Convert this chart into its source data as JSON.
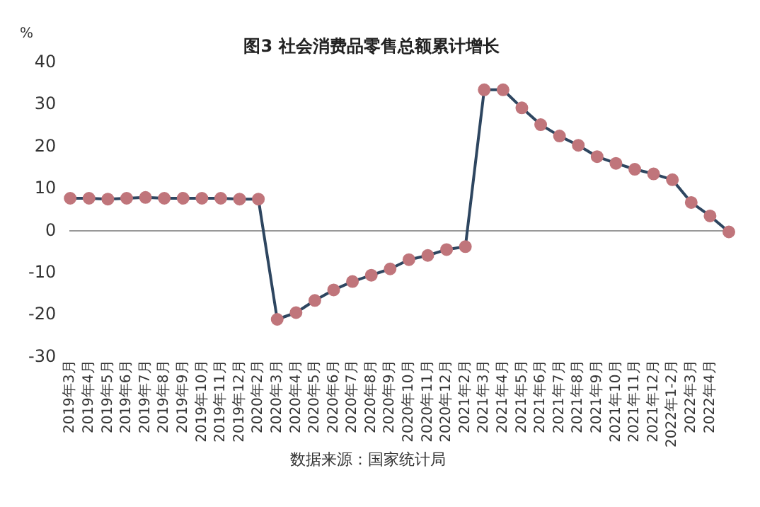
{
  "chart_data": {
    "type": "line",
    "title": "图3 社会消费品零售总额累计增长",
    "ylabel": "%",
    "categories": [
      "2019年3月",
      "2019年4月",
      "2019年5月",
      "2019年6月",
      "2019年7月",
      "2019年8月",
      "2019年9月",
      "2019年10月",
      "2019年11月",
      "2019年12月",
      "2020年2月",
      "2020年3月",
      "2020年4月",
      "2020年5月",
      "2020年6月",
      "2020年7月",
      "2020年8月",
      "2020年9月",
      "2020年10月",
      "2020年11月",
      "2020年12月",
      "2021年2月",
      "2021年3月",
      "2021年4月",
      "2021年5月",
      "2021年6月",
      "2021年7月",
      "2021年8月",
      "2021年9月",
      "2021年10月",
      "2021年11月",
      "2021年12月",
      "2022年1-2月",
      "2022年3月",
      "2022年4月",
      null
    ],
    "series": [
      {
        "color": "#2e4660",
        "colors": [
          "#c0757b",
          "#c0757b",
          "#c0757b",
          "#c0757b",
          "#c0757b",
          "#c0757b",
          "#c0757b",
          "#c0757b",
          "#c0757b",
          "#c0757b",
          "#c0757b",
          "#c0757b",
          "#c0757b",
          "#c0757b",
          "#c0757b",
          "#c0757b",
          "#c0757b",
          "#c0757b",
          "#c0757b",
          "#c0757b",
          "#c0757b",
          "#c0757b",
          "#c0757b",
          "#c0757b",
          "#c0757b",
          "#c0757b",
          "#c0757b",
          "#c0757b",
          "#c0757b",
          "#c0757b",
          "#c0757b",
          "#c0757b",
          "#c0757b",
          "#c0757b",
          "#c0757b",
          "#c0757b"
        ],
        "values": [
          7.8,
          7.8,
          7.6,
          7.8,
          8.0,
          7.8,
          7.8,
          7.8,
          7.8,
          7.6,
          7.6,
          -21,
          -19.4,
          -16.5,
          -14,
          -12,
          -10.5,
          -9,
          -6.8,
          -5.8,
          -4.4,
          -3.7,
          33.6,
          33.6,
          29.3,
          25.3,
          22.6,
          20.4,
          17.7,
          16.1,
          14.7,
          13.6,
          12.2,
          6.8,
          3.6,
          -0.2
        ]
      }
    ],
    "ylim": [
      -30,
      40
    ],
    "yticks": [
      -30,
      -20,
      -10,
      0,
      10,
      20,
      30,
      40
    ],
    "legend": false,
    "marker": "circle",
    "line_style": "solid",
    "annotations": [
      "数据来源：国家统计局"
    ]
  }
}
